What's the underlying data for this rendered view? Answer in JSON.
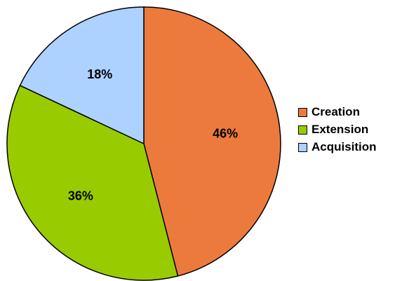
{
  "chart_data": {
    "type": "pie",
    "categories": [
      "Creation",
      "Extension",
      "Acquisition"
    ],
    "values": [
      46,
      36,
      18
    ],
    "data_labels": [
      "46%",
      "36%",
      "18%"
    ],
    "colors": [
      "#ED7A3D",
      "#99CC00",
      "#ADD2FF"
    ],
    "start_angle_deg": 0,
    "direction": "clockwise",
    "legend_position": "right",
    "title": ""
  },
  "legend": {
    "items": [
      {
        "label": "Creation",
        "color": "#ED7A3D"
      },
      {
        "label": "Extension",
        "color": "#99CC00"
      },
      {
        "label": "Acquisition",
        "color": "#ADD2FF"
      }
    ]
  }
}
